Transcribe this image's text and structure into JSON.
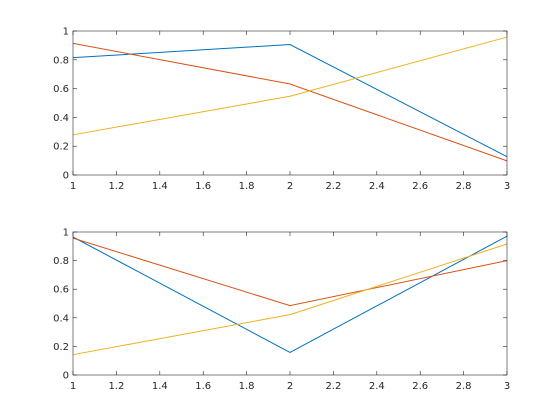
{
  "chart_data": [
    {
      "type": "line",
      "title": "",
      "xlabel": "",
      "ylabel": "",
      "xlim": [
        1,
        3
      ],
      "ylim": [
        0,
        1
      ],
      "grid": false,
      "xticks": [
        "1",
        "1.2",
        "1.4",
        "1.6",
        "1.8",
        "2",
        "2.2",
        "2.4",
        "2.6",
        "2.8",
        "3"
      ],
      "yticks": [
        "0",
        "0.2",
        "0.4",
        "0.6",
        "0.8",
        "1"
      ],
      "x": [
        1,
        2,
        3
      ],
      "series": [
        {
          "color": "#0072BD",
          "values": [
            0.815,
            0.906,
            0.127
          ]
        },
        {
          "color": "#D95319",
          "values": [
            0.914,
            0.632,
            0.098
          ]
        },
        {
          "color": "#EDB120",
          "values": [
            0.279,
            0.547,
            0.958
          ]
        }
      ]
    },
    {
      "type": "line",
      "title": "",
      "xlabel": "",
      "ylabel": "",
      "xlim": [
        1,
        3
      ],
      "ylim": [
        0,
        1
      ],
      "grid": false,
      "xticks": [
        "1",
        "1.2",
        "1.4",
        "1.6",
        "1.8",
        "2",
        "2.2",
        "2.4",
        "2.6",
        "2.8",
        "3"
      ],
      "yticks": [
        "0",
        "0.2",
        "0.4",
        "0.6",
        "0.8",
        "1"
      ],
      "x": [
        1,
        2,
        3
      ],
      "series": [
        {
          "color": "#0072BD",
          "values": [
            0.965,
            0.158,
            0.971
          ]
        },
        {
          "color": "#D95319",
          "values": [
            0.957,
            0.485,
            0.8
          ]
        },
        {
          "color": "#EDB120",
          "values": [
            0.142,
            0.422,
            0.916
          ]
        }
      ]
    }
  ]
}
